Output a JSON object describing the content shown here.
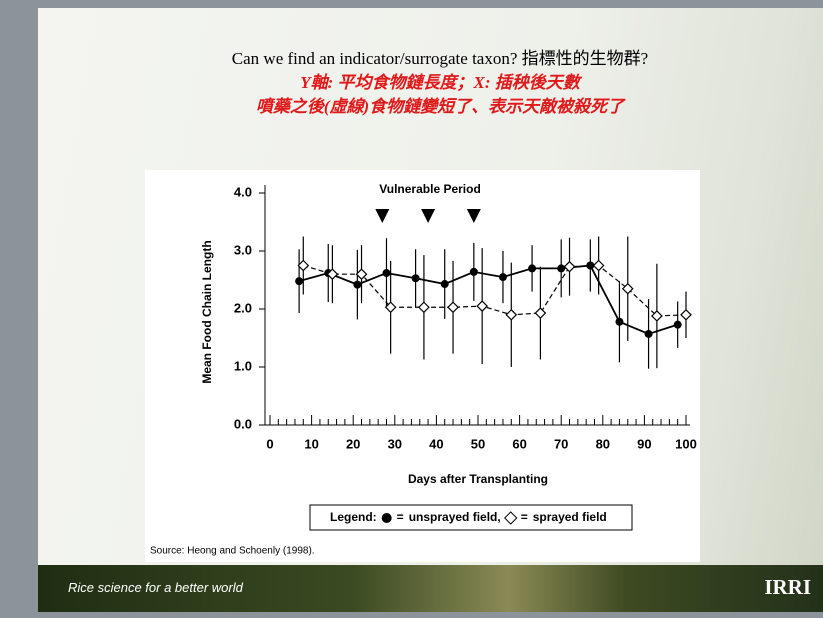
{
  "slide": {
    "title": "Can we find an indicator/surrogate taxon? 指標性的生物群?",
    "notes": [
      "Y軸: 平均食物鏈長度；X: 插秧後天數",
      "噴藥之後(虛線)食物鏈變短了、表示天敵被殺死了"
    ],
    "source": "Source: Heong and Schoenly (1998).",
    "footer": "Rice science for a better world",
    "logo": "IRRI"
  },
  "chart_data": {
    "type": "line",
    "annotation": "Vulnerable Period",
    "annotation_marks_x": [
      27,
      38,
      49
    ],
    "xlabel": "Days after Transplanting",
    "ylabel": "Mean Food Chain Length",
    "xlim": [
      0,
      100
    ],
    "ylim": [
      0,
      4
    ],
    "xticks": [
      0,
      10,
      20,
      30,
      40,
      50,
      60,
      70,
      80,
      90,
      100
    ],
    "xminorticks": [
      2,
      4,
      6,
      8,
      12,
      14,
      16,
      18,
      22,
      24,
      26,
      28,
      32,
      34,
      36,
      38,
      42,
      44,
      46,
      48,
      52,
      54,
      56,
      58,
      62,
      64,
      66,
      68,
      72,
      74,
      76,
      78,
      82,
      84,
      86,
      88,
      92,
      94,
      96,
      98
    ],
    "yticks": [
      {
        "value": 0,
        "label": "0.0"
      },
      {
        "value": 1,
        "label": "1.0"
      },
      {
        "value": 2,
        "label": "2.0"
      },
      {
        "value": 3,
        "label": "3.0"
      },
      {
        "value": 4,
        "label": "4.0"
      }
    ],
    "legend": {
      "title": "Legend:",
      "separator": "=",
      "delimiter": ","
    },
    "series": [
      {
        "name": "unsprayed field",
        "color": "#000000",
        "marker": "circle",
        "dashed": false,
        "x": [
          7,
          14,
          21,
          28,
          35,
          42,
          49,
          56,
          63,
          70,
          77,
          84,
          91,
          98
        ],
        "values": [
          2.48,
          2.62,
          2.42,
          2.62,
          2.53,
          2.43,
          2.64,
          2.55,
          2.7,
          2.7,
          2.75,
          1.78,
          1.57,
          1.73
        ],
        "errors": [
          0.55,
          0.5,
          0.6,
          0.6,
          0.5,
          0.6,
          0.5,
          0.45,
          0.4,
          0.5,
          0.45,
          0.7,
          0.6,
          0.4
        ]
      },
      {
        "name": "sprayed field",
        "color": "#000000",
        "marker": "diamond",
        "dashed": true,
        "x": [
          8,
          15,
          22,
          29,
          37,
          44,
          51,
          58,
          65,
          72,
          79,
          86,
          93,
          100
        ],
        "values": [
          2.75,
          2.6,
          2.6,
          2.03,
          2.03,
          2.03,
          2.05,
          1.9,
          1.93,
          2.73,
          2.75,
          2.35,
          1.88,
          1.9
        ],
        "errors": [
          0.5,
          0.5,
          0.5,
          0.8,
          0.9,
          0.8,
          1.0,
          0.9,
          0.8,
          0.5,
          0.5,
          0.9,
          0.9,
          0.4
        ]
      }
    ]
  }
}
